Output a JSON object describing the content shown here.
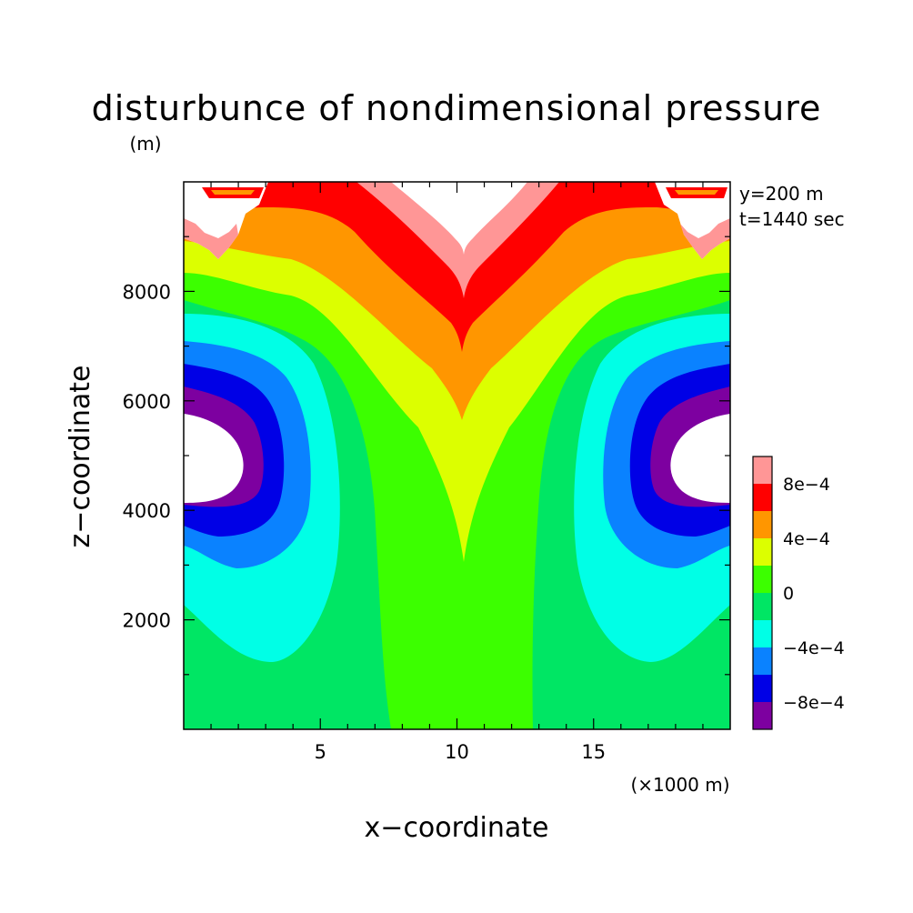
{
  "chart_data": {
    "type": "heatmap",
    "title": "disturbunce of nondimensional pressure",
    "ylabel": "z−coordinate",
    "yunit": "(m)",
    "xlabel": "x−coordinate",
    "xunit": "(×1000 m)",
    "annotations": [
      "y=200 m",
      "t=1440 sec"
    ],
    "xlim": [
      0,
      20
    ],
    "ylim": [
      0,
      10000
    ],
    "x_ticks": [
      {
        "value": 5,
        "label": "5"
      },
      {
        "value": 10,
        "label": "10"
      },
      {
        "value": 15,
        "label": "15"
      }
    ],
    "y_ticks": [
      {
        "value": 2000,
        "label": "2000"
      },
      {
        "value": 4000,
        "label": "4000"
      },
      {
        "value": 6000,
        "label": "6000"
      },
      {
        "value": 8000,
        "label": "8000"
      }
    ],
    "grid": false,
    "legend": "right",
    "colorbar": {
      "levels": [
        -0.001,
        -0.0008,
        -0.0006,
        -0.0004,
        -0.0002,
        0,
        0.0002,
        0.0004,
        0.0006,
        0.0008,
        0.001
      ],
      "colors": [
        "#7d00a0",
        "#0000e6",
        "#0a82ff",
        "#00ffe6",
        "#00e664",
        "#3cff00",
        "#dcff00",
        "#ff9600",
        "#ff0000",
        "#ff9696"
      ],
      "labels": [
        {
          "value": -0.0008,
          "label": "−8e−4"
        },
        {
          "value": -0.0004,
          "label": "−4e−4"
        },
        {
          "value": 0,
          "label": "0"
        },
        {
          "value": 0.0004,
          "label": "4e−4"
        },
        {
          "value": 0.0008,
          "label": "8e−4"
        }
      ]
    }
  }
}
